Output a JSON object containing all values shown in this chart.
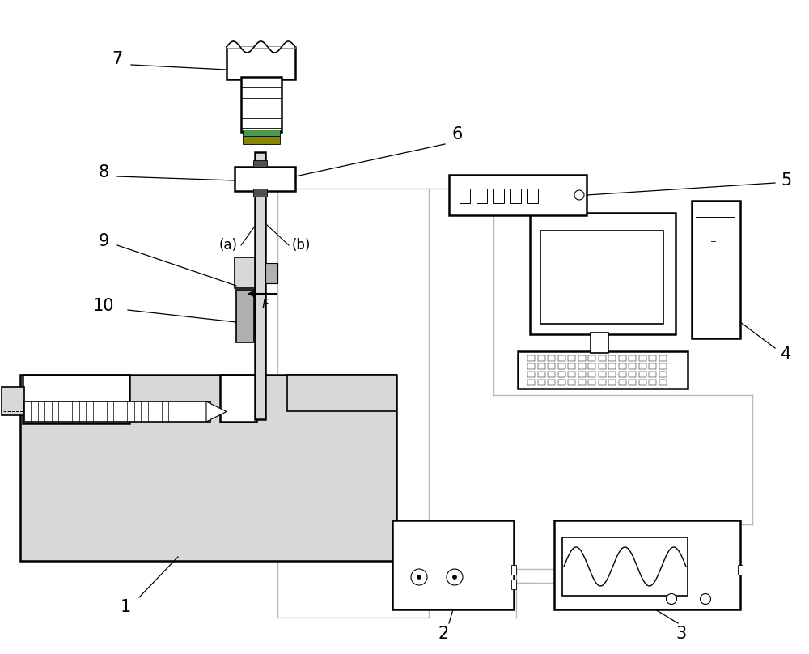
{
  "bg_color": "#ffffff",
  "lc": "#000000",
  "lg": "#d8d8d8",
  "mg": "#b0b0b0",
  "dg": "#505050",
  "wc": "#b8b8b8",
  "figsize": [
    10.0,
    8.08
  ],
  "xlim": [
    0,
    10
  ],
  "ylim": [
    0,
    8.08
  ]
}
